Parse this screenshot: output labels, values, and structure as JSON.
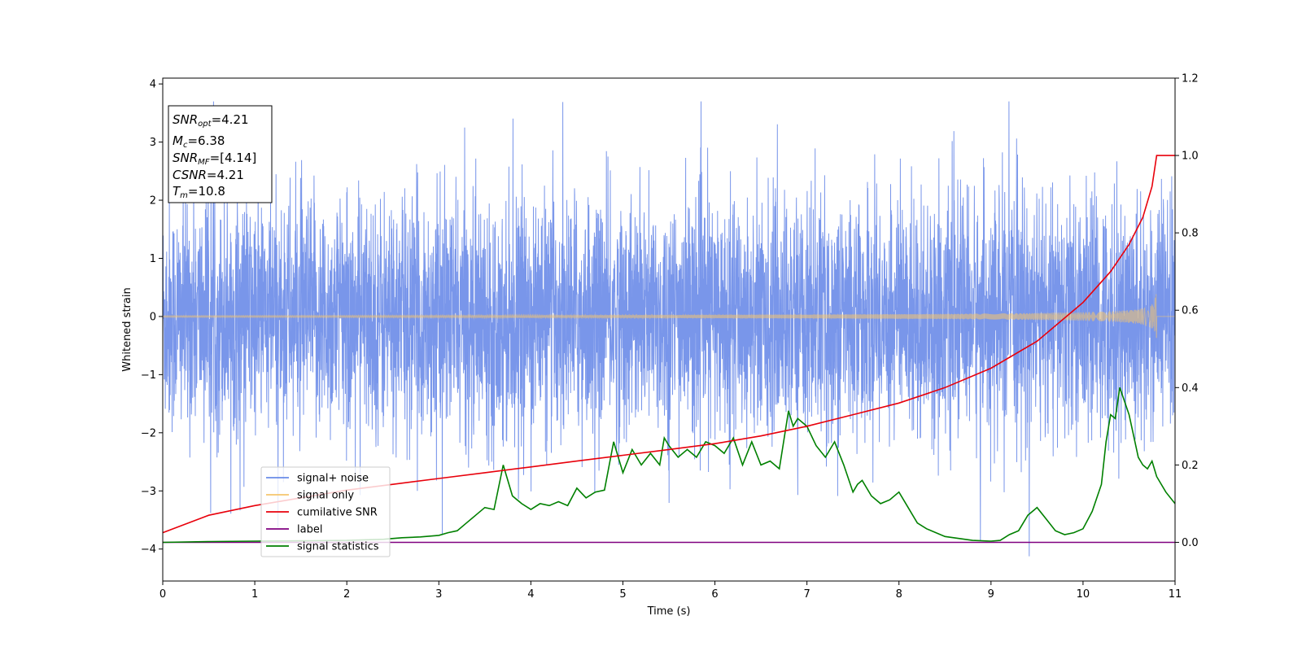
{
  "chart_data": {
    "type": "line",
    "title": "",
    "xlabel": "Time (s)",
    "ylabel": "Whitened strain",
    "y2label": "",
    "xlim": [
      0,
      11
    ],
    "ylim": [
      -4.55,
      4.1
    ],
    "y2lim": [
      -0.1,
      1.2
    ],
    "x_ticks": [
      0,
      1,
      2,
      3,
      4,
      5,
      6,
      7,
      8,
      9,
      10,
      11
    ],
    "y_ticks": [
      -4,
      -3,
      -2,
      -1,
      0,
      1,
      2,
      3,
      4
    ],
    "y2_ticks": [
      0.0,
      0.2,
      0.4,
      0.6,
      0.8,
      1.0,
      1.2
    ],
    "grid": false,
    "legend_position": "lower-left",
    "series": [
      {
        "name": "signal+ noise",
        "axis": "left",
        "color": "#6a8be8",
        "kind": "noise",
        "note_range": [
          -4.15,
          3.7
        ],
        "values": []
      },
      {
        "name": "signal only",
        "axis": "left",
        "color": "#f5c66d",
        "kind": "chirp",
        "peak_time": 10.8,
        "peak_amplitude": 0.55,
        "values": []
      },
      {
        "name": "cumilative SNR",
        "axis": "right",
        "color": "#e8000b",
        "x": [
          0,
          0.5,
          1,
          1.5,
          2,
          2.5,
          3,
          3.5,
          4,
          4.5,
          5,
          5.5,
          6,
          6.5,
          7,
          7.5,
          8,
          8.5,
          9,
          9.5,
          10,
          10.3,
          10.5,
          10.65,
          10.75,
          10.8,
          11
        ],
        "values": [
          0.025,
          0.07,
          0.095,
          0.115,
          0.135,
          0.15,
          0.165,
          0.18,
          0.195,
          0.21,
          0.225,
          0.24,
          0.255,
          0.275,
          0.3,
          0.33,
          0.36,
          0.4,
          0.45,
          0.52,
          0.62,
          0.7,
          0.77,
          0.84,
          0.92,
          1.0,
          1.0
        ]
      },
      {
        "name": "label",
        "axis": "right",
        "color": "#800080",
        "x": [
          0,
          11
        ],
        "values": [
          0.0,
          0.0
        ]
      },
      {
        "name": "signal statistics",
        "axis": "right",
        "color": "#008000",
        "x": [
          0,
          0.5,
          1,
          1.5,
          2,
          2.4,
          2.6,
          2.8,
          3.0,
          3.1,
          3.2,
          3.3,
          3.4,
          3.5,
          3.6,
          3.7,
          3.8,
          3.9,
          4.0,
          4.1,
          4.2,
          4.3,
          4.4,
          4.5,
          4.6,
          4.7,
          4.8,
          4.9,
          5.0,
          5.1,
          5.2,
          5.3,
          5.4,
          5.45,
          5.5,
          5.6,
          5.7,
          5.8,
          5.9,
          6.0,
          6.1,
          6.2,
          6.3,
          6.4,
          6.5,
          6.6,
          6.7,
          6.8,
          6.85,
          6.9,
          6.95,
          7.0,
          7.1,
          7.2,
          7.3,
          7.4,
          7.5,
          7.55,
          7.6,
          7.7,
          7.8,
          7.9,
          8.0,
          8.1,
          8.2,
          8.3,
          8.5,
          8.8,
          9.0,
          9.1,
          9.2,
          9.3,
          9.4,
          9.5,
          9.6,
          9.7,
          9.8,
          9.9,
          10.0,
          10.1,
          10.2,
          10.25,
          10.3,
          10.35,
          10.4,
          10.5,
          10.6,
          10.65,
          10.7,
          10.75,
          10.8,
          10.9,
          11.0
        ],
        "values": [
          0.0,
          0.002,
          0.003,
          0.004,
          0.005,
          0.008,
          0.012,
          0.014,
          0.018,
          0.025,
          0.03,
          0.05,
          0.07,
          0.09,
          0.085,
          0.2,
          0.12,
          0.1,
          0.085,
          0.1,
          0.095,
          0.105,
          0.095,
          0.14,
          0.115,
          0.13,
          0.135,
          0.26,
          0.18,
          0.24,
          0.2,
          0.23,
          0.2,
          0.27,
          0.25,
          0.22,
          0.24,
          0.22,
          0.26,
          0.25,
          0.23,
          0.27,
          0.2,
          0.26,
          0.2,
          0.21,
          0.19,
          0.34,
          0.3,
          0.32,
          0.31,
          0.3,
          0.25,
          0.22,
          0.26,
          0.2,
          0.13,
          0.15,
          0.16,
          0.12,
          0.1,
          0.11,
          0.13,
          0.09,
          0.05,
          0.035,
          0.015,
          0.005,
          0.003,
          0.005,
          0.02,
          0.03,
          0.07,
          0.09,
          0.06,
          0.03,
          0.02,
          0.025,
          0.035,
          0.08,
          0.15,
          0.26,
          0.33,
          0.32,
          0.4,
          0.33,
          0.22,
          0.2,
          0.19,
          0.21,
          0.17,
          0.13,
          0.1
        ]
      }
    ],
    "info_box": {
      "lines": [
        {
          "var": "SNR",
          "sub": "opt",
          "value": "=4.21"
        },
        {
          "var": "M",
          "sub": "c",
          "value": "=6.38"
        },
        {
          "var": "SNR",
          "sub": "MF",
          "value": "=[4.14]"
        },
        {
          "var": "CSNR",
          "sub": "",
          "value": "=4.21"
        },
        {
          "var": "T",
          "sub": "m",
          "value": "=10.8"
        }
      ]
    }
  }
}
